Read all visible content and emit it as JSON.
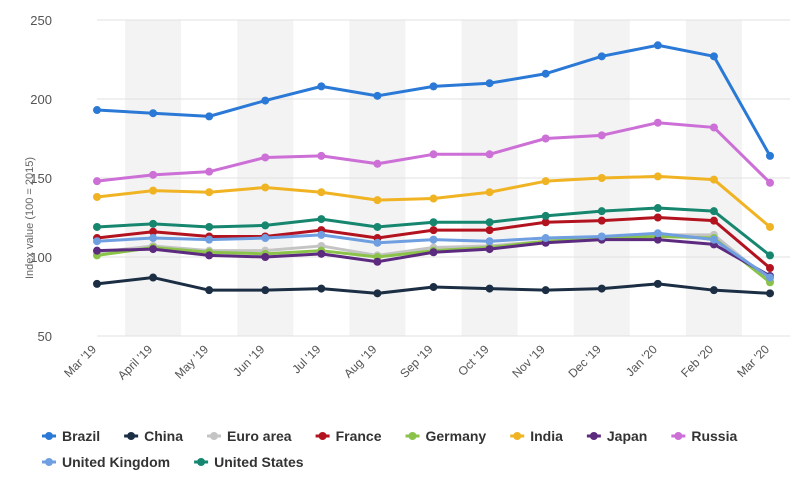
{
  "chart_data": {
    "type": "line",
    "title": "",
    "xlabel": "",
    "ylabel": "Index value (100 = 2015)",
    "ylim": [
      50,
      250
    ],
    "yticks": [
      250,
      200,
      150,
      100,
      50
    ],
    "grid": true,
    "legend_position": "bottom",
    "categories": [
      "Mar '19",
      "April '19",
      "May '19",
      "Jun '19",
      "Jul '19",
      "Aug '19",
      "Sep '19",
      "Oct '19",
      "Nov '19",
      "Dec '19",
      "Jan '20",
      "Feb '20",
      "Mar '20"
    ],
    "series": [
      {
        "name": "Brazil",
        "color": "#2b79d6",
        "values": [
          193,
          191,
          189,
          199,
          208,
          202,
          208,
          210,
          216,
          227,
          234,
          227,
          164
        ]
      },
      {
        "name": "China",
        "color": "#1b2e44",
        "values": [
          83,
          87,
          79,
          79,
          80,
          77,
          81,
          80,
          79,
          80,
          83,
          79,
          77
        ]
      },
      {
        "name": "Euro area",
        "color": "#c4c4c4",
        "values": [
          103,
          107,
          104,
          104,
          107,
          101,
          106,
          107,
          110,
          111,
          114,
          114,
          85
        ]
      },
      {
        "name": "France",
        "color": "#b3121f",
        "values": [
          112,
          116,
          113,
          113,
          117,
          112,
          117,
          117,
          122,
          123,
          125,
          123,
          93
        ]
      },
      {
        "name": "Germany",
        "color": "#8bc34a",
        "values": [
          101,
          106,
          103,
          102,
          104,
          100,
          104,
          106,
          110,
          112,
          113,
          112,
          84
        ]
      },
      {
        "name": "India",
        "color": "#f0b323",
        "values": [
          138,
          142,
          141,
          144,
          141,
          136,
          137,
          141,
          148,
          150,
          151,
          149,
          119
        ]
      },
      {
        "name": "Japan",
        "color": "#5c2a7e",
        "values": [
          104,
          105,
          101,
          100,
          102,
          97,
          103,
          105,
          109,
          111,
          111,
          108,
          88
        ]
      },
      {
        "name": "Russia",
        "color": "#cc6fd6",
        "values": [
          148,
          152,
          154,
          163,
          164,
          159,
          165,
          165,
          175,
          177,
          185,
          182,
          147
        ]
      },
      {
        "name": "United Kingdom",
        "color": "#6f9fe0",
        "values": [
          110,
          112,
          111,
          112,
          114,
          109,
          111,
          110,
          112,
          113,
          115,
          111,
          87
        ]
      },
      {
        "name": "United States",
        "color": "#16866f",
        "values": [
          119,
          121,
          119,
          120,
          124,
          119,
          122,
          122,
          126,
          129,
          131,
          129,
          101
        ]
      }
    ]
  }
}
